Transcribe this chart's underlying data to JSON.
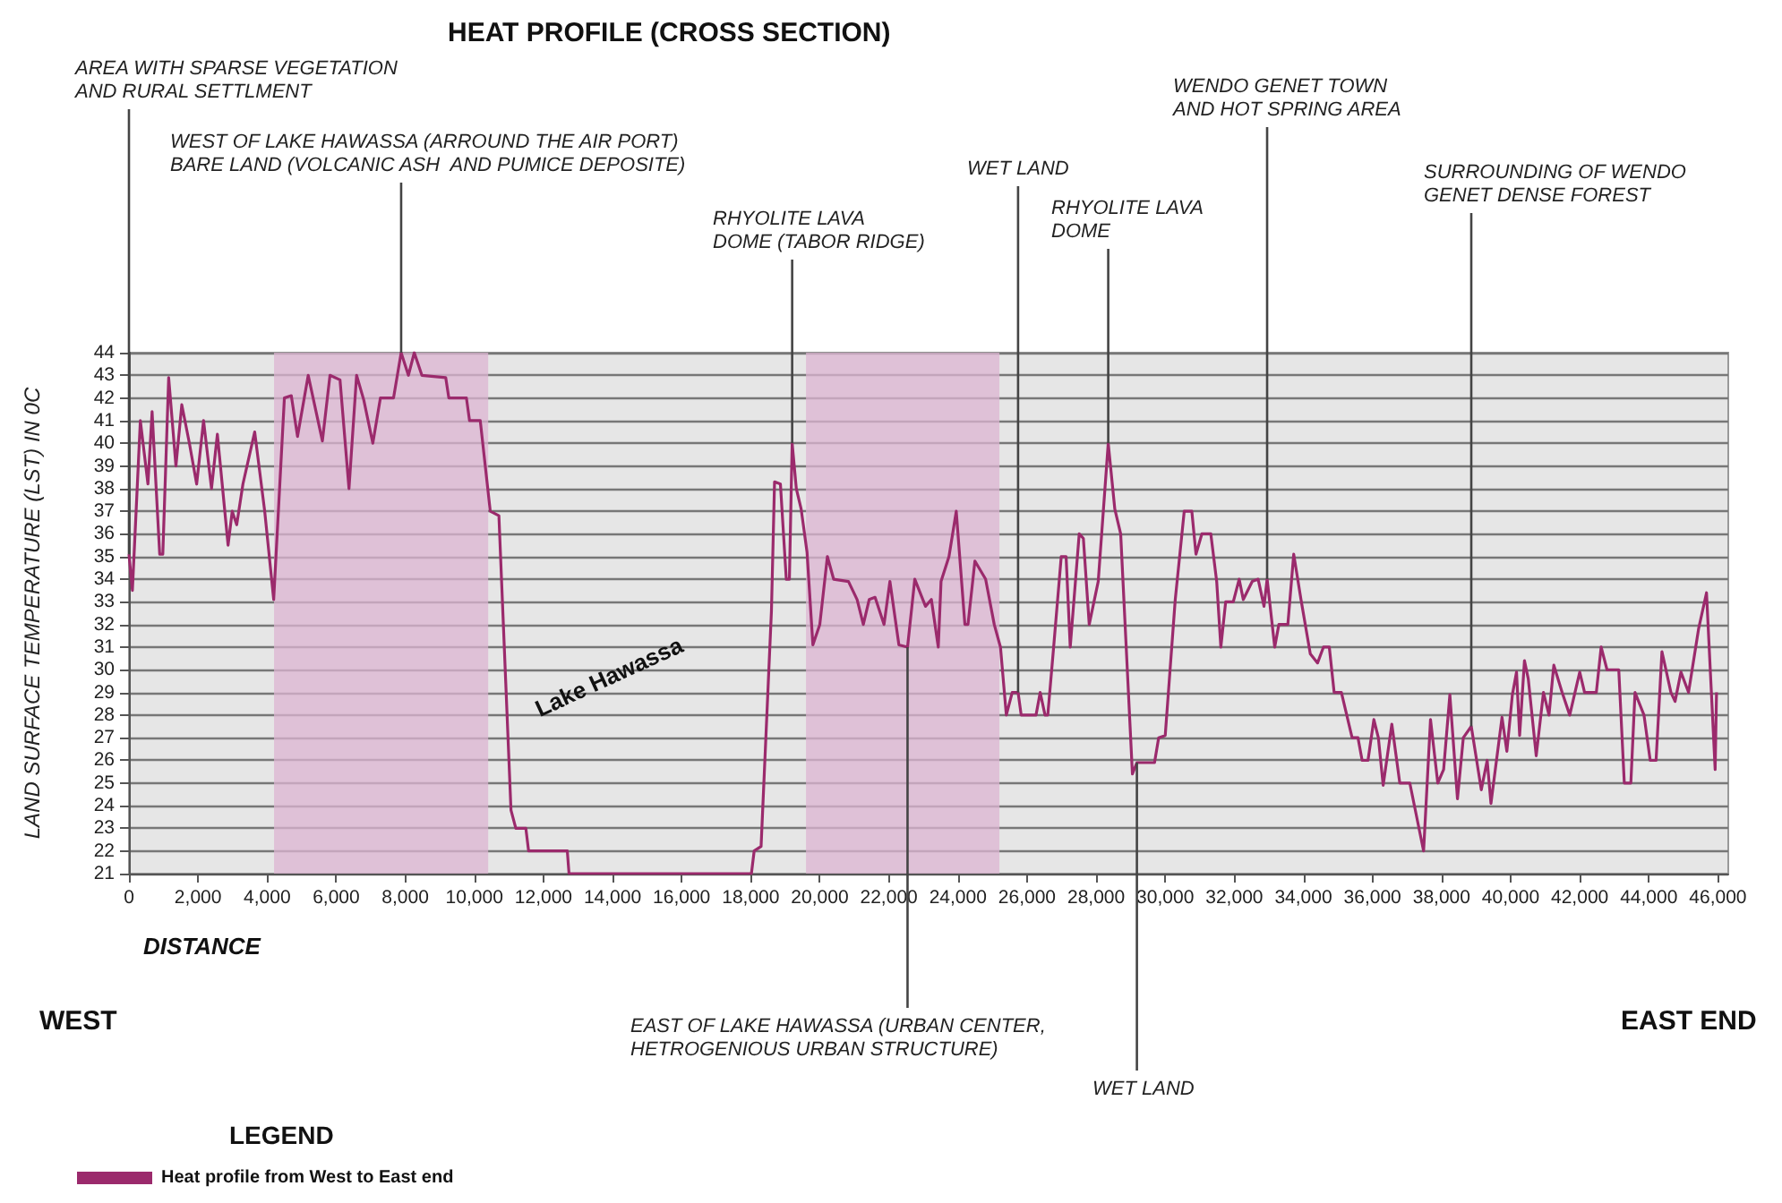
{
  "chart_data": {
    "type": "line",
    "title": "HEAT PROFILE (CROSS SECTION)",
    "xlabel": "DISTANCE",
    "ylabel": "LAND SURFACE TEMPERATURE (LST) IN 0C",
    "legend_title": "LEGEND",
    "x": [
      0,
      100,
      330,
      550,
      670,
      890,
      980,
      1150,
      1360,
      1530,
      1750,
      1960,
      2160,
      2390,
      2560,
      2870,
      2990,
      3120,
      3300,
      3640,
      3930,
      4190,
      4500,
      4700,
      4880,
      5190,
      5600,
      5820,
      6110,
      6370,
      6590,
      6800,
      7060,
      7280,
      7660,
      7880,
      8090,
      8260,
      8480,
      9170,
      9260,
      9770,
      9860,
      10170,
      10460,
      10710,
      11060,
      11200,
      11490,
      11570,
      11750,
      12690,
      12740,
      18020,
      18100,
      18300,
      18600,
      18690,
      18860,
      19030,
      19120,
      19200,
      19320,
      19460,
      19630,
      19800,
      20000,
      20220,
      20400,
      20830,
      21080,
      21260,
      21430,
      21600,
      21860,
      22030,
      22290,
      22540,
      22750,
      23060,
      23230,
      23430,
      23510,
      23740,
      23950,
      24200,
      24290,
      24490,
      24800,
      25050,
      25230,
      25400,
      25570,
      25740,
      25830,
      26260,
      26380,
      26520,
      26600,
      26770,
      26990,
      27130,
      27250,
      27510,
      27630,
      27800,
      28060,
      28350,
      28540,
      28710,
      29050,
      29180,
      29690,
      29810,
      30000,
      30290,
      30550,
      30770,
      30890,
      31060,
      31320,
      31490,
      31610,
      31750,
      31970,
      32140,
      32260,
      32520,
      32690,
      32860,
      32950,
      33170,
      33290,
      33550,
      33720,
      33930,
      34200,
      34410,
      34580,
      34750,
      34890,
      35100,
      35410,
      35580,
      35700,
      35870,
      36040,
      36170,
      36310,
      36560,
      36790,
      37080,
      37480,
      37680,
      37890,
      38060,
      38240,
      38460,
      38630,
      38860,
      39150,
      39320,
      39430,
      39750,
      39890,
      40050,
      40170,
      40260,
      40400,
      40510,
      40740,
      40950,
      41110,
      41250,
      41490,
      41710,
      42000,
      42140,
      42480,
      42620,
      42790,
      43130,
      43290,
      43480,
      43600,
      43860,
      44040,
      44210,
      44380,
      44640,
      44760,
      44930,
      45150,
      45440,
      45670,
      45920,
      45960
    ],
    "series": [
      {
        "name": "Heat profile from West to East end",
        "color": "#9b2a6c",
        "values": [
          35.1,
          33.5,
          41,
          38.2,
          41.4,
          35.1,
          35.1,
          42.9,
          39,
          41.7,
          40,
          38.2,
          41,
          38,
          40.4,
          35.5,
          37,
          36.4,
          38.2,
          40.5,
          37,
          33.1,
          42,
          42.1,
          40.3,
          43,
          40.1,
          43,
          42.8,
          38,
          43,
          41.9,
          40,
          42,
          42,
          44,
          43,
          44,
          43,
          42.9,
          42,
          42,
          41,
          41,
          37,
          36.8,
          23.8,
          23,
          23,
          22,
          22,
          22,
          21,
          21,
          22,
          22.2,
          32.6,
          38.3,
          38.2,
          34,
          34,
          40,
          38,
          37.1,
          35.2,
          31.1,
          32,
          35,
          34,
          33.9,
          33.1,
          32,
          33.1,
          33.2,
          32,
          33.9,
          31.1,
          31,
          34,
          32.8,
          33.1,
          31,
          33.9,
          35,
          37,
          32,
          32,
          34.8,
          34,
          32,
          31,
          28,
          29,
          29,
          28,
          28,
          29,
          28,
          28,
          31,
          35,
          35,
          31,
          36,
          35.8,
          32,
          33.9,
          40,
          37.1,
          36,
          25.4,
          25.9,
          25.9,
          27,
          27.1,
          33.1,
          37,
          37,
          35.1,
          36,
          36,
          33.9,
          31,
          33,
          33,
          34,
          33.1,
          33.9,
          34,
          32.8,
          34,
          31,
          32,
          32,
          35.1,
          33.1,
          30.7,
          30.3,
          31,
          31,
          29,
          29,
          27,
          27,
          26,
          26,
          27.8,
          27,
          24.9,
          27.6,
          25,
          25,
          22,
          27.8,
          25,
          25.6,
          28.9,
          24.3,
          27,
          27.5,
          24.7,
          26,
          24.1,
          27.9,
          26.4,
          28.9,
          29.9,
          27.1,
          30.4,
          29.6,
          26.2,
          29,
          28,
          30.2,
          29,
          28,
          29.9,
          29,
          29,
          31,
          30,
          30,
          25,
          25,
          29,
          28,
          26,
          26,
          30.8,
          29,
          28.6,
          29.9,
          29,
          31.8,
          33.4,
          25.6,
          29
        ]
      }
    ],
    "xlim": [
      0,
      46300
    ],
    "ylim": [
      21,
      44
    ],
    "xticks": [
      0,
      {
        "value": 2000,
        "label": "2,000"
      },
      {
        "value": 4000,
        "label": "4,000"
      },
      {
        "value": 6000,
        "label": "6,000"
      },
      {
        "value": 8000,
        "label": "8,000"
      },
      {
        "value": 10000,
        "label": "10,000"
      },
      {
        "value": 12000,
        "label": "12,000"
      },
      {
        "value": 14000,
        "label": "14,000"
      },
      {
        "value": 16000,
        "label": "16,000"
      },
      {
        "value": 18000,
        "label": "18,000"
      },
      {
        "value": 20000,
        "label": "20,000"
      },
      {
        "value": 22000,
        "label": "22,000"
      },
      {
        "value": 24000,
        "label": "24,000"
      },
      {
        "value": 26000,
        "label": "26,000"
      },
      {
        "value": 28000,
        "label": "28,000"
      },
      {
        "value": 30000,
        "label": "30,000"
      },
      {
        "value": 32000,
        "label": "32,000"
      },
      {
        "value": 34000,
        "label": "34,000"
      },
      {
        "value": 36000,
        "label": "36,000"
      },
      {
        "value": 38000,
        "label": "38,000"
      },
      {
        "value": 40000,
        "label": "40,000"
      },
      {
        "value": 42000,
        "label": "42,000"
      },
      {
        "value": 44000,
        "label": "44,000"
      },
      {
        "value": 46000,
        "label": "46,000"
      }
    ],
    "yticks": [
      21,
      22,
      23,
      24,
      25,
      26,
      27,
      28,
      29,
      30,
      31,
      32,
      33,
      34,
      35,
      36,
      37,
      38,
      39,
      40,
      41,
      42,
      43,
      44
    ],
    "grid": "y",
    "legend": "bottom left",
    "bands": [
      {
        "axis": "x",
        "from": 4200,
        "to": 10400,
        "color": "#dcb4d2"
      },
      {
        "axis": "x",
        "from": 19600,
        "to": 25200,
        "color": "#dcb4d2"
      }
    ],
    "annotations": [
      {
        "text": "AREA WITH SPARSE VEGETATION\nAND RURAL SETTLMENT",
        "x": 0,
        "y": 35.1
      },
      {
        "text": "WEST OF LAKE HAWASSA (ARROUND THE AIR PORT)\nBARE LAND (VOLCANIC ASH  AND PUMICE DEPOSITE)",
        "x": 7880,
        "y": 44
      },
      {
        "text": "RHYOLITE LAVA\nDOME (TABOR RIDGE)",
        "x": 19200,
        "y": 40
      },
      {
        "text": "WET LAND",
        "x": 25740,
        "y": 29
      },
      {
        "text": "RHYOLITE LAVA\nDOME",
        "x": 28350,
        "y": 40
      },
      {
        "text": "WENDO GENET TOWN\nAND HOT SPRING AREA",
        "x": 32950,
        "y": 34
      },
      {
        "text": "SURROUNDING OF WENDO\nGENET DENSE FOREST",
        "x": 38860,
        "y": 27.5
      },
      {
        "text": "EAST OF LAKE HAWASSA (URBAN CENTER,\nHETROGENIOUS URBAN STRUCTURE)",
        "x": 22540,
        "y": 31
      },
      {
        "text": "WET LAND",
        "x": 29180,
        "y": 25.9
      },
      "Lake Hawassa",
      "WEST",
      "EAST END"
    ]
  }
}
